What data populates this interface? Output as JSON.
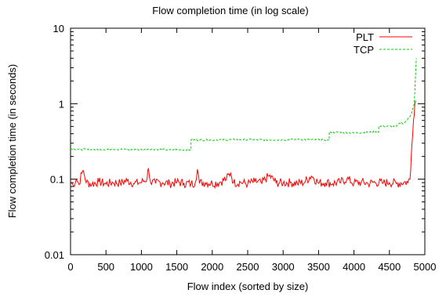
{
  "chart_data": {
    "type": "line",
    "title": "Flow completion time (in log scale)",
    "xlabel": "Flow index (sorted by size)",
    "ylabel": "Flow completion time (in seconds)",
    "xlim": [
      0,
      5000
    ],
    "ylim": [
      0.01,
      10
    ],
    "y_scale": "log",
    "grid": false,
    "legend_position": "top-right",
    "x_ticks": [
      "0",
      "500",
      "1000",
      "1500",
      "2000",
      "2500",
      "3000",
      "3500",
      "4000",
      "4500",
      "5000"
    ],
    "y_ticks": [
      "0.01",
      "0.1",
      "1",
      "10"
    ],
    "series": [
      {
        "name": "PLT",
        "color": "#ff0000",
        "style": "solid",
        "points": [
          [
            0,
            0.09
          ],
          [
            40,
            0.082
          ],
          [
            80,
            0.1
          ],
          [
            120,
            0.085
          ],
          [
            160,
            0.12
          ],
          [
            180,
            0.13
          ],
          [
            220,
            0.09
          ],
          [
            300,
            0.085
          ],
          [
            400,
            0.092
          ],
          [
            500,
            0.086
          ],
          [
            600,
            0.09
          ],
          [
            700,
            0.088
          ],
          [
            800,
            0.095
          ],
          [
            900,
            0.087
          ],
          [
            1000,
            0.09
          ],
          [
            1080,
            0.1
          ],
          [
            1100,
            0.14
          ],
          [
            1130,
            0.09
          ],
          [
            1200,
            0.088
          ],
          [
            1300,
            0.09
          ],
          [
            1400,
            0.087
          ],
          [
            1500,
            0.09
          ],
          [
            1600,
            0.088
          ],
          [
            1700,
            0.086
          ],
          [
            1760,
            0.09
          ],
          [
            1790,
            0.135
          ],
          [
            1820,
            0.088
          ],
          [
            1900,
            0.09
          ],
          [
            2000,
            0.087
          ],
          [
            2100,
            0.09
          ],
          [
            2200,
            0.1
          ],
          [
            2260,
            0.12
          ],
          [
            2300,
            0.089
          ],
          [
            2400,
            0.09
          ],
          [
            2500,
            0.086
          ],
          [
            2600,
            0.092
          ],
          [
            2700,
            0.088
          ],
          [
            2800,
            0.11
          ],
          [
            2900,
            0.09
          ],
          [
            3000,
            0.088
          ],
          [
            3100,
            0.09
          ],
          [
            3200,
            0.087
          ],
          [
            3300,
            0.09
          ],
          [
            3400,
            0.11
          ],
          [
            3500,
            0.088
          ],
          [
            3600,
            0.09
          ],
          [
            3700,
            0.087
          ],
          [
            3800,
            0.09
          ],
          [
            3900,
            0.1
          ],
          [
            4000,
            0.088
          ],
          [
            4100,
            0.09
          ],
          [
            4200,
            0.087
          ],
          [
            4300,
            0.09
          ],
          [
            4400,
            0.088
          ],
          [
            4500,
            0.09
          ],
          [
            4600,
            0.087
          ],
          [
            4700,
            0.09
          ],
          [
            4760,
            0.09
          ],
          [
            4790,
            0.1
          ],
          [
            4800,
            0.13
          ],
          [
            4820,
            0.3
          ],
          [
            4840,
            0.6
          ],
          [
            4860,
            1.0
          ],
          [
            4870,
            1.1
          ]
        ]
      },
      {
        "name": "TCP",
        "color": "#00cc00",
        "style": "dashed",
        "points": [
          [
            0,
            0.25
          ],
          [
            300,
            0.245
          ],
          [
            600,
            0.25
          ],
          [
            900,
            0.245
          ],
          [
            1100,
            0.25
          ],
          [
            1400,
            0.245
          ],
          [
            1700,
            0.245
          ],
          [
            1700,
            0.33
          ],
          [
            2000,
            0.33
          ],
          [
            2400,
            0.335
          ],
          [
            2800,
            0.33
          ],
          [
            3200,
            0.335
          ],
          [
            3650,
            0.33
          ],
          [
            3650,
            0.42
          ],
          [
            4000,
            0.41
          ],
          [
            4300,
            0.42
          ],
          [
            4350,
            0.42
          ],
          [
            4350,
            0.5
          ],
          [
            4600,
            0.5
          ],
          [
            4650,
            0.55
          ],
          [
            4700,
            0.55
          ],
          [
            4750,
            0.6
          ],
          [
            4800,
            0.7
          ],
          [
            4830,
            0.85
          ],
          [
            4850,
            1.0
          ],
          [
            4860,
            1.5
          ],
          [
            4870,
            2.5
          ],
          [
            4880,
            4.0
          ]
        ]
      }
    ]
  }
}
